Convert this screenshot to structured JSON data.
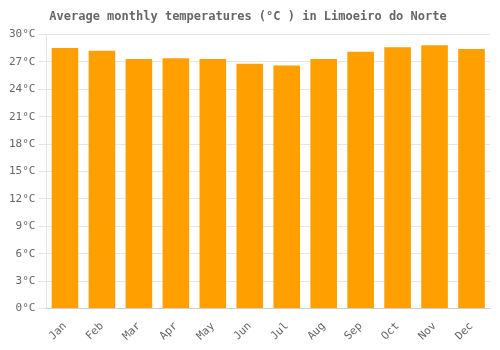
{
  "chart_data": {
    "type": "bar",
    "title": "Average monthly temperatures (°C ) in Limoeiro do Norte",
    "categories": [
      "Jan",
      "Feb",
      "Mar",
      "Apr",
      "May",
      "Jun",
      "Jul",
      "Aug",
      "Sep",
      "Oct",
      "Nov",
      "Dec"
    ],
    "values": [
      28.5,
      28.2,
      27.3,
      27.4,
      27.3,
      26.8,
      26.6,
      27.3,
      28.1,
      28.6,
      28.8,
      28.4
    ],
    "color": "#FFA000",
    "ylim": [
      0,
      30
    ],
    "yticks": [
      {
        "value": 0,
        "label": "0°C"
      },
      {
        "value": 3,
        "label": "3°C"
      },
      {
        "value": 6,
        "label": "6°C"
      },
      {
        "value": 9,
        "label": "9°C"
      },
      {
        "value": 12,
        "label": "12°C"
      },
      {
        "value": 15,
        "label": "15°C"
      },
      {
        "value": 18,
        "label": "18°C"
      },
      {
        "value": 21,
        "label": "21°C"
      },
      {
        "value": 24,
        "label": "24°C"
      },
      {
        "value": 27,
        "label": "27°C"
      },
      {
        "value": 30,
        "label": "30°C"
      }
    ],
    "grid": true
  }
}
